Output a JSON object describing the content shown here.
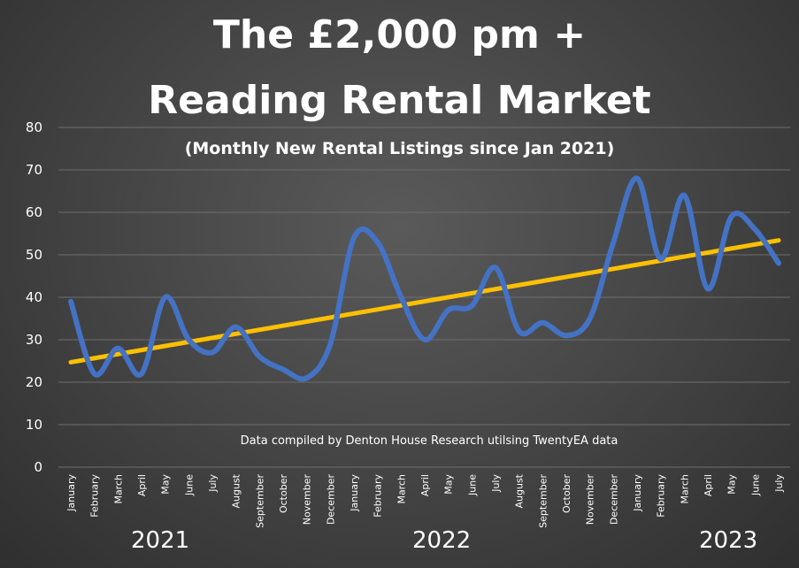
{
  "chart_data": {
    "type": "line",
    "title": "The £2,000 pm +",
    "title_line2": "Reading Rental Market",
    "subtitle": "(Monthly New Rental Listings since Jan 2021)",
    "annotation": "Data compiled by Denton House Research utilsing TwentyEA data",
    "xlabel": "",
    "ylabel": "",
    "ylim": [
      0,
      80
    ],
    "yticks": [
      "0",
      "10",
      "20",
      "30",
      "40",
      "50",
      "60",
      "70",
      "80"
    ],
    "grid": true,
    "categories": [
      "January",
      "February",
      "March",
      "April",
      "May",
      "June",
      "July",
      "August",
      "September",
      "October",
      "November",
      "December",
      "January",
      "February",
      "March",
      "April",
      "May",
      "June",
      "July",
      "August",
      "September",
      "October",
      "November",
      "December",
      "January",
      "February",
      "March",
      "April",
      "May",
      "June",
      "July"
    ],
    "year_labels": [
      "2021",
      "2022",
      "2023"
    ],
    "series": [
      {
        "values": [
          39,
          22,
          28,
          22,
          40,
          30,
          27,
          33,
          26,
          23,
          21,
          29,
          54,
          53,
          40,
          30,
          37,
          38,
          47,
          32,
          34,
          31,
          35,
          53,
          68,
          49,
          64,
          42,
          59,
          56,
          48
        ],
        "color": "#4472c4"
      },
      {
        "trendline": true,
        "start": 24.7,
        "end": 53.4,
        "color": "#ffc000"
      }
    ]
  }
}
